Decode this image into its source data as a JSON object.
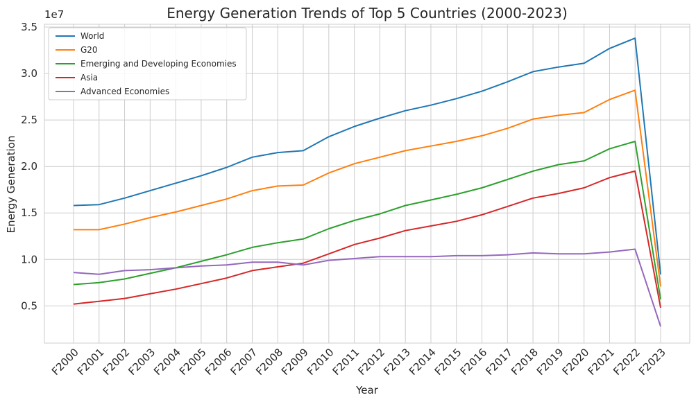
{
  "chart_data": {
    "type": "line",
    "title": "Energy Generation Trends of Top 5 Countries (2000-2023)",
    "xlabel": "Year",
    "ylabel": "Energy Generation",
    "y_offset_label": "1e7",
    "ylim": [
      0.1,
      3.53
    ],
    "yticks": [
      0.5,
      1.0,
      1.5,
      2.0,
      2.5,
      3.0,
      3.5
    ],
    "ytick_labels": [
      "0.5",
      "1.0",
      "1.5",
      "2.0",
      "2.5",
      "3.0",
      "3.5"
    ],
    "grid": true,
    "legend_position": "top-left",
    "categories": [
      "F2000",
      "F2001",
      "F2002",
      "F2003",
      "F2004",
      "F2005",
      "F2006",
      "F2007",
      "F2008",
      "F2009",
      "F2010",
      "F2011",
      "F2012",
      "F2013",
      "F2014",
      "F2015",
      "F2016",
      "F2017",
      "F2018",
      "F2019",
      "F2020",
      "F2021",
      "F2022",
      "F2023"
    ],
    "series": [
      {
        "name": "World",
        "color": "#1f77b4",
        "values": [
          1.58,
          1.59,
          1.66,
          1.74,
          1.82,
          1.9,
          1.99,
          2.1,
          2.15,
          2.17,
          2.32,
          2.43,
          2.52,
          2.6,
          2.66,
          2.73,
          2.81,
          2.91,
          3.02,
          3.07,
          3.11,
          3.27,
          3.38,
          0.84
        ]
      },
      {
        "name": "G20",
        "color": "#ff7f0e",
        "values": [
          1.32,
          1.32,
          1.38,
          1.45,
          1.51,
          1.58,
          1.65,
          1.74,
          1.79,
          1.8,
          1.93,
          2.03,
          2.1,
          2.17,
          2.22,
          2.27,
          2.33,
          2.41,
          2.51,
          2.55,
          2.58,
          2.72,
          2.82,
          0.71
        ]
      },
      {
        "name": "Emerging and Developing Economies",
        "color": "#2ca02c",
        "values": [
          0.73,
          0.75,
          0.79,
          0.85,
          0.91,
          0.98,
          1.05,
          1.13,
          1.18,
          1.22,
          1.33,
          1.42,
          1.49,
          1.58,
          1.64,
          1.7,
          1.77,
          1.86,
          1.95,
          2.02,
          2.06,
          2.19,
          2.27,
          0.57
        ]
      },
      {
        "name": "Asia",
        "color": "#d62728",
        "values": [
          0.52,
          0.55,
          0.58,
          0.63,
          0.68,
          0.74,
          0.8,
          0.88,
          0.92,
          0.96,
          1.06,
          1.16,
          1.23,
          1.31,
          1.36,
          1.41,
          1.48,
          1.57,
          1.66,
          1.71,
          1.77,
          1.88,
          1.95,
          0.48
        ]
      },
      {
        "name": "Advanced Economies",
        "color": "#9467bd",
        "values": [
          0.86,
          0.84,
          0.88,
          0.89,
          0.91,
          0.93,
          0.94,
          0.97,
          0.97,
          0.94,
          0.99,
          1.01,
          1.03,
          1.03,
          1.03,
          1.04,
          1.04,
          1.05,
          1.07,
          1.06,
          1.06,
          1.08,
          1.11,
          0.28
        ]
      }
    ]
  }
}
